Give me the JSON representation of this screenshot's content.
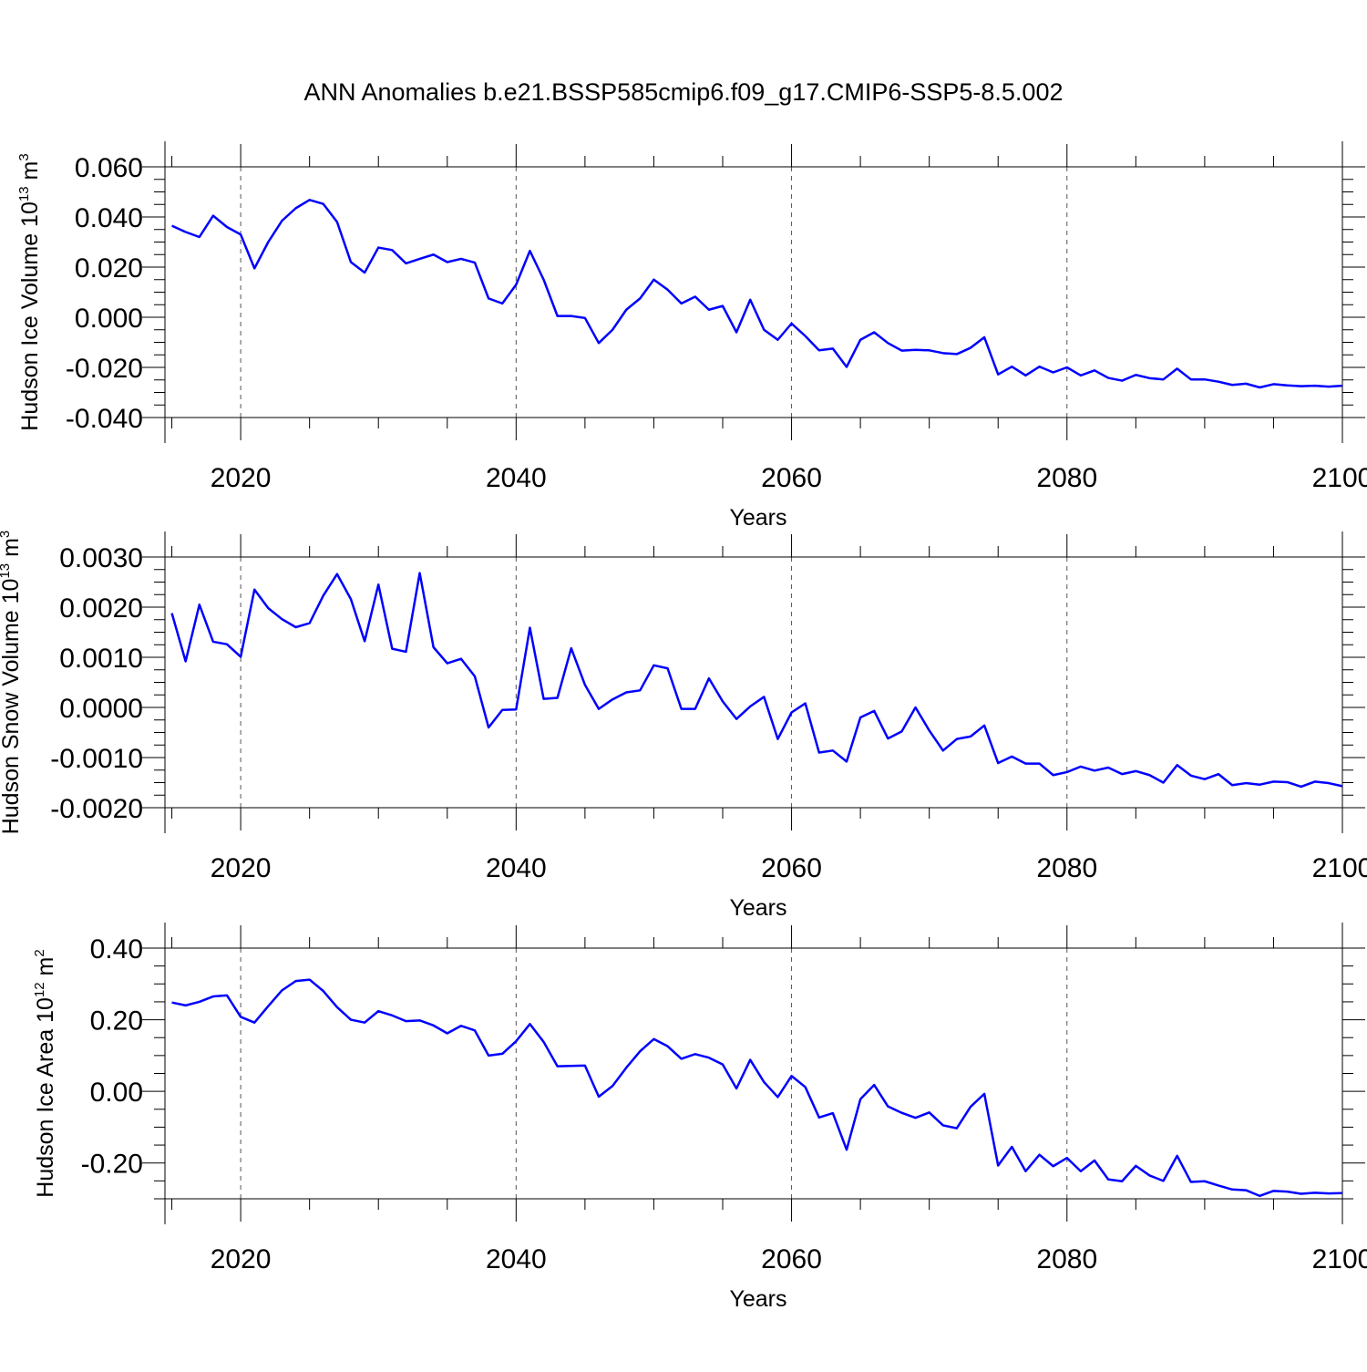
{
  "title": "ANN Anomalies b.e21.BSSP585cmip6.f09_g17.CMIP6-SSP5-8.5.002",
  "colors": {
    "line": "#0000ff",
    "axis": "#000000",
    "grid": "#555555",
    "background": "#ffffff"
  },
  "chart_data": [
    {
      "type": "line",
      "ylabel": {
        "text": "Hudson Ice Volume 10",
        "sup": "13",
        "unit": " m",
        "unit_sup": "3"
      },
      "xlabel": "Years",
      "xlim": [
        2014.5,
        2100
      ],
      "ylim": [
        -0.04,
        0.06
      ],
      "x_ticks": [
        2020,
        2040,
        2060,
        2080,
        2100
      ],
      "x_tick_labels": [
        "2020",
        "2040",
        "2060",
        "2080",
        "2100"
      ],
      "y_ticks": [
        -0.04,
        -0.02,
        0.0,
        0.02,
        0.04,
        0.06
      ],
      "y_tick_labels": [
        "-0.040",
        "-0.020",
        "0.000",
        "0.020",
        "0.040",
        "0.060"
      ],
      "y_minor_step": 0.005,
      "grid": "x-dashed",
      "x": [
        2015,
        2016,
        2017,
        2018,
        2019,
        2020,
        2021,
        2022,
        2023,
        2024,
        2025,
        2026,
        2027,
        2028,
        2029,
        2030,
        2031,
        2032,
        2033,
        2034,
        2035,
        2036,
        2037,
        2038,
        2039,
        2040,
        2041,
        2042,
        2043,
        2044,
        2045,
        2046,
        2047,
        2048,
        2049,
        2050,
        2051,
        2052,
        2053,
        2054,
        2055,
        2056,
        2057,
        2058,
        2059,
        2060,
        2061,
        2062,
        2063,
        2064,
        2065,
        2066,
        2067,
        2068,
        2069,
        2070,
        2071,
        2072,
        2073,
        2074,
        2075,
        2076,
        2077,
        2078,
        2079,
        2080,
        2081,
        2082,
        2083,
        2084,
        2085,
        2086,
        2087,
        2088,
        2089,
        2090,
        2091,
        2092,
        2093,
        2094,
        2095,
        2096,
        2097,
        2098,
        2099,
        2100
      ],
      "values": [
        0.0365,
        0.034,
        0.032,
        0.0405,
        0.036,
        0.033,
        0.0195,
        0.03,
        0.0385,
        0.0435,
        0.0468,
        0.0452,
        0.038,
        0.022,
        0.0178,
        0.0278,
        0.0268,
        0.0215,
        0.0233,
        0.025,
        0.022,
        0.0233,
        0.0218,
        0.0075,
        0.0055,
        0.013,
        0.0265,
        0.015,
        0.0005,
        0.0005,
        -0.0003,
        -0.0103,
        -0.005,
        0.003,
        0.0075,
        0.015,
        0.011,
        0.0055,
        0.0082,
        0.003,
        0.0045,
        -0.006,
        0.007,
        -0.005,
        -0.009,
        -0.0025,
        -0.0075,
        -0.0132,
        -0.0125,
        -0.0198,
        -0.009,
        -0.006,
        -0.0103,
        -0.0133,
        -0.013,
        -0.0132,
        -0.0143,
        -0.0147,
        -0.0122,
        -0.008,
        -0.0228,
        -0.0197,
        -0.0232,
        -0.0197,
        -0.022,
        -0.02,
        -0.0232,
        -0.0212,
        -0.0242,
        -0.0253,
        -0.023,
        -0.0243,
        -0.0248,
        -0.0205,
        -0.0248,
        -0.0248,
        -0.0257,
        -0.027,
        -0.0265,
        -0.028,
        -0.0267,
        -0.0272,
        -0.0275,
        -0.0273,
        -0.0277,
        -0.0273
      ]
    },
    {
      "type": "line",
      "ylabel": {
        "text": "Hudson Snow Volume 10",
        "sup": "13",
        "unit": " m",
        "unit_sup": "3"
      },
      "xlabel": "Years",
      "xlim": [
        2014.5,
        2100
      ],
      "ylim": [
        -0.002,
        0.003
      ],
      "x_ticks": [
        2020,
        2040,
        2060,
        2080,
        2100
      ],
      "x_tick_labels": [
        "2020",
        "2040",
        "2060",
        "2080",
        "2100"
      ],
      "y_ticks": [
        -0.002,
        -0.001,
        0.0,
        0.001,
        0.002,
        0.003
      ],
      "y_tick_labels": [
        "-0.0020",
        "-0.0010",
        "0.0000",
        "0.0010",
        "0.0020",
        "0.0030"
      ],
      "y_minor_step": 0.00025,
      "grid": "x-dashed",
      "x": [
        2015,
        2016,
        2017,
        2018,
        2019,
        2020,
        2021,
        2022,
        2023,
        2024,
        2025,
        2026,
        2027,
        2028,
        2029,
        2030,
        2031,
        2032,
        2033,
        2034,
        2035,
        2036,
        2037,
        2038,
        2039,
        2040,
        2041,
        2042,
        2043,
        2044,
        2045,
        2046,
        2047,
        2048,
        2049,
        2050,
        2051,
        2052,
        2053,
        2054,
        2055,
        2056,
        2057,
        2058,
        2059,
        2060,
        2061,
        2062,
        2063,
        2064,
        2065,
        2066,
        2067,
        2068,
        2069,
        2070,
        2071,
        2072,
        2073,
        2074,
        2075,
        2076,
        2077,
        2078,
        2079,
        2080,
        2081,
        2082,
        2083,
        2084,
        2085,
        2086,
        2087,
        2088,
        2089,
        2090,
        2091,
        2092,
        2093,
        2094,
        2095,
        2096,
        2097,
        2098,
        2099,
        2100
      ],
      "values": [
        0.00188,
        0.00092,
        0.00205,
        0.00131,
        0.00126,
        0.00101,
        0.00235,
        0.00198,
        0.00176,
        0.0016,
        0.00168,
        0.00223,
        0.00266,
        0.00216,
        0.00132,
        0.00245,
        0.00117,
        0.00111,
        0.00268,
        0.0012,
        0.00088,
        0.00097,
        0.00062,
        -0.0004,
        -5e-05,
        -4e-05,
        0.00159,
        0.00017,
        0.00019,
        0.00118,
        0.00045,
        -3e-05,
        0.00016,
        0.0003,
        0.00034,
        0.00084,
        0.00078,
        -3e-05,
        -3e-05,
        0.00058,
        0.00012,
        -0.00023,
        2e-05,
        0.00021,
        -0.00063,
        -0.0001,
        8e-05,
        -0.0009,
        -0.00086,
        -0.00108,
        -0.0002,
        -7e-05,
        -0.00062,
        -0.00048,
        0.0,
        -0.00046,
        -0.00086,
        -0.00063,
        -0.00058,
        -0.00036,
        -0.00111,
        -0.00098,
        -0.00112,
        -0.00112,
        -0.00135,
        -0.00129,
        -0.00118,
        -0.00126,
        -0.0012,
        -0.00133,
        -0.00127,
        -0.00135,
        -0.0015,
        -0.00115,
        -0.00136,
        -0.00143,
        -0.00133,
        -0.00155,
        -0.00151,
        -0.00154,
        -0.00148,
        -0.00149,
        -0.00158,
        -0.00148,
        -0.00151,
        -0.00157
      ]
    },
    {
      "type": "line",
      "ylabel": {
        "text": "Hudson Ice Area 10",
        "sup": "12",
        "unit": " m",
        "unit_sup": "2"
      },
      "xlabel": "Years",
      "xlim": [
        2014.5,
        2100
      ],
      "ylim": [
        -0.3,
        0.4
      ],
      "x_ticks": [
        2020,
        2040,
        2060,
        2080,
        2100
      ],
      "x_tick_labels": [
        "2020",
        "2040",
        "2060",
        "2080",
        "2100"
      ],
      "y_ticks": [
        -0.2,
        0.0,
        0.2,
        0.4
      ],
      "y_tick_labels": [
        "-0.20",
        "0.00",
        "0.20",
        "0.40"
      ],
      "y_minor_step": 0.05,
      "grid": "x-dashed",
      "x": [
        2015,
        2016,
        2017,
        2018,
        2019,
        2020,
        2021,
        2022,
        2023,
        2024,
        2025,
        2026,
        2027,
        2028,
        2029,
        2030,
        2031,
        2032,
        2033,
        2034,
        2035,
        2036,
        2037,
        2038,
        2039,
        2040,
        2041,
        2042,
        2043,
        2044,
        2045,
        2046,
        2047,
        2048,
        2049,
        2050,
        2051,
        2052,
        2053,
        2054,
        2055,
        2056,
        2057,
        2058,
        2059,
        2060,
        2061,
        2062,
        2063,
        2064,
        2065,
        2066,
        2067,
        2068,
        2069,
        2070,
        2071,
        2072,
        2073,
        2074,
        2075,
        2076,
        2077,
        2078,
        2079,
        2080,
        2081,
        2082,
        2083,
        2084,
        2085,
        2086,
        2087,
        2088,
        2089,
        2090,
        2091,
        2092,
        2093,
        2094,
        2095,
        2096,
        2097,
        2098,
        2099,
        2100
      ],
      "values": [
        0.248,
        0.24,
        0.25,
        0.265,
        0.268,
        0.208,
        0.192,
        0.238,
        0.282,
        0.308,
        0.312,
        0.28,
        0.235,
        0.2,
        0.192,
        0.224,
        0.212,
        0.196,
        0.198,
        0.184,
        0.162,
        0.183,
        0.17,
        0.1,
        0.105,
        0.14,
        0.188,
        0.138,
        0.07,
        0.071,
        0.072,
        -0.015,
        0.015,
        0.066,
        0.112,
        0.146,
        0.126,
        0.091,
        0.104,
        0.094,
        0.075,
        0.008,
        0.088,
        0.026,
        -0.016,
        0.043,
        0.012,
        -0.073,
        -0.061,
        -0.163,
        -0.022,
        0.018,
        -0.042,
        -0.06,
        -0.074,
        -0.059,
        -0.095,
        -0.103,
        -0.043,
        -0.007,
        -0.207,
        -0.155,
        -0.223,
        -0.177,
        -0.209,
        -0.186,
        -0.223,
        -0.193,
        -0.246,
        -0.251,
        -0.208,
        -0.235,
        -0.25,
        -0.18,
        -0.253,
        -0.251,
        -0.263,
        -0.274,
        -0.276,
        -0.292,
        -0.278,
        -0.28,
        -0.286,
        -0.283,
        -0.285,
        -0.284
      ]
    }
  ]
}
